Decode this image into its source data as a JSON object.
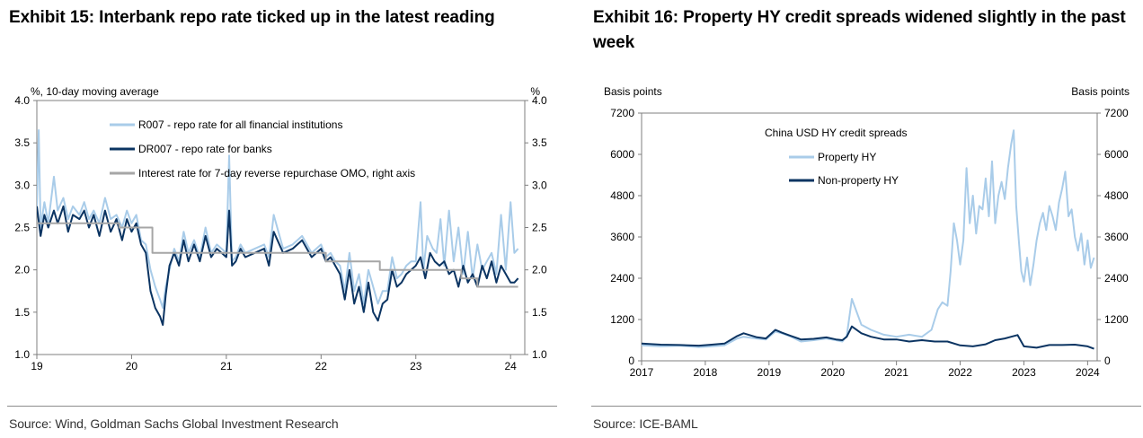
{
  "exhibit15": {
    "title": "Exhibit 15: Interbank repo rate ticked up in the latest reading",
    "source": "Source: Wind, Goldman Sachs Global Investment Research"
  },
  "exhibit16": {
    "title": "Exhibit 16: Property HY credit spreads widened slightly in the past week",
    "source": "Source: ICE-BAML"
  },
  "chart_data": [
    {
      "type": "line",
      "title": "Exhibit 15: Interbank repo rate ticked up in the latest reading",
      "ylabel": "%, 10-day moving average",
      "ylabel_right": "%",
      "ylim": [
        1.0,
        4.0
      ],
      "xlim": [
        2019.0,
        2024.15
      ],
      "yticks": [
        "4.0",
        "3.5",
        "3.0",
        "2.5",
        "2.0",
        "1.5",
        "1.0"
      ],
      "ytick_values": [
        4.0,
        3.5,
        3.0,
        2.5,
        2.0,
        1.5,
        1.0
      ],
      "xticks": [
        "19",
        "20",
        "21",
        "22",
        "23",
        "24"
      ],
      "xtick_values": [
        2019,
        2020,
        2021,
        2022,
        2023,
        2024
      ],
      "legend": [
        "R007 - repo rate for all financial institutions",
        "DR007 - repo rate for banks",
        "Interest rate for 7-day reverse repurchase OMO, right axis"
      ],
      "series": [
        {
          "name": "R007 - repo rate for all financial institutions",
          "color": "#a9cce9",
          "width": 2,
          "x": [
            2019.0,
            2019.02,
            2019.04,
            2019.08,
            2019.12,
            2019.18,
            2019.22,
            2019.28,
            2019.33,
            2019.38,
            2019.45,
            2019.5,
            2019.55,
            2019.6,
            2019.66,
            2019.72,
            2019.78,
            2019.84,
            2019.9,
            2019.95,
            2020.0,
            2020.05,
            2020.1,
            2020.15,
            2020.2,
            2020.25,
            2020.3,
            2020.33,
            2020.36,
            2020.4,
            2020.45,
            2020.5,
            2020.55,
            2020.6,
            2020.66,
            2020.72,
            2020.78,
            2020.84,
            2020.9,
            2020.95,
            2021.0,
            2021.03,
            2021.06,
            2021.1,
            2021.15,
            2021.2,
            2021.3,
            2021.4,
            2021.45,
            2021.5,
            2021.6,
            2021.7,
            2021.8,
            2021.9,
            2022.0,
            2022.05,
            2022.1,
            2022.15,
            2022.2,
            2022.25,
            2022.3,
            2022.35,
            2022.4,
            2022.45,
            2022.5,
            2022.6,
            2022.65,
            2022.7,
            2022.75,
            2022.8,
            2022.85,
            2022.9,
            2022.95,
            2023.0,
            2023.05,
            2023.08,
            2023.12,
            2023.18,
            2023.22,
            2023.26,
            2023.3,
            2023.35,
            2023.4,
            2023.45,
            2023.5,
            2023.55,
            2023.6,
            2023.65,
            2023.7,
            2023.75,
            2023.8,
            2023.85,
            2023.9,
            2023.95,
            2024.0,
            2024.04,
            2024.08
          ],
          "values": [
            2.75,
            3.65,
            2.5,
            2.8,
            2.55,
            3.1,
            2.7,
            2.85,
            2.6,
            2.75,
            2.65,
            2.8,
            2.6,
            2.7,
            2.55,
            2.85,
            2.6,
            2.65,
            2.5,
            2.7,
            2.55,
            2.65,
            2.35,
            2.3,
            2.0,
            1.8,
            1.65,
            1.55,
            1.8,
            2.0,
            2.25,
            2.1,
            2.45,
            2.2,
            2.35,
            2.15,
            2.5,
            2.2,
            2.3,
            2.25,
            2.2,
            3.35,
            2.1,
            2.15,
            2.3,
            2.2,
            2.25,
            2.3,
            2.15,
            2.65,
            2.25,
            2.3,
            2.4,
            2.2,
            2.3,
            2.15,
            2.2,
            2.1,
            2.05,
            1.75,
            2.2,
            1.75,
            1.95,
            1.6,
            2.0,
            1.6,
            1.75,
            1.75,
            2.15,
            1.9,
            1.95,
            2.05,
            2.1,
            2.1,
            2.8,
            2.0,
            2.4,
            2.25,
            2.2,
            2.6,
            2.05,
            2.7,
            2.1,
            2.5,
            1.95,
            2.45,
            1.9,
            2.3,
            2.0,
            2.1,
            2.2,
            1.95,
            2.65,
            2.0,
            2.8,
            2.2,
            2.25
          ]
        },
        {
          "name": "DR007 - repo rate for banks",
          "color": "#0b3462",
          "width": 2,
          "x": [
            2019.0,
            2019.04,
            2019.08,
            2019.12,
            2019.18,
            2019.22,
            2019.28,
            2019.33,
            2019.38,
            2019.45,
            2019.5,
            2019.55,
            2019.6,
            2019.66,
            2019.72,
            2019.78,
            2019.84,
            2019.9,
            2019.95,
            2020.0,
            2020.05,
            2020.1,
            2020.15,
            2020.2,
            2020.25,
            2020.3,
            2020.33,
            2020.36,
            2020.4,
            2020.45,
            2020.5,
            2020.55,
            2020.6,
            2020.66,
            2020.72,
            2020.78,
            2020.84,
            2020.9,
            2020.95,
            2021.0,
            2021.03,
            2021.06,
            2021.1,
            2021.15,
            2021.2,
            2021.3,
            2021.4,
            2021.45,
            2021.5,
            2021.6,
            2021.7,
            2021.8,
            2021.9,
            2022.0,
            2022.05,
            2022.1,
            2022.15,
            2022.2,
            2022.25,
            2022.3,
            2022.35,
            2022.4,
            2022.45,
            2022.5,
            2022.55,
            2022.6,
            2022.65,
            2022.7,
            2022.75,
            2022.8,
            2022.85,
            2022.9,
            2022.95,
            2023.0,
            2023.05,
            2023.1,
            2023.15,
            2023.2,
            2023.25,
            2023.3,
            2023.35,
            2023.4,
            2023.45,
            2023.5,
            2023.55,
            2023.6,
            2023.65,
            2023.7,
            2023.75,
            2023.8,
            2023.85,
            2023.9,
            2023.95,
            2024.0,
            2024.04,
            2024.08
          ],
          "values": [
            2.75,
            2.4,
            2.65,
            2.5,
            2.7,
            2.55,
            2.75,
            2.45,
            2.65,
            2.6,
            2.7,
            2.5,
            2.65,
            2.4,
            2.7,
            2.45,
            2.6,
            2.35,
            2.6,
            2.45,
            2.55,
            2.3,
            2.2,
            1.75,
            1.55,
            1.45,
            1.35,
            1.7,
            2.05,
            2.2,
            2.05,
            2.35,
            2.1,
            2.3,
            2.1,
            2.4,
            2.15,
            2.25,
            2.2,
            2.15,
            2.7,
            2.05,
            2.1,
            2.25,
            2.15,
            2.2,
            2.25,
            2.05,
            2.45,
            2.2,
            2.25,
            2.35,
            2.15,
            2.25,
            2.1,
            2.15,
            2.05,
            1.95,
            1.65,
            2.0,
            1.6,
            1.8,
            1.5,
            1.85,
            1.5,
            1.4,
            1.6,
            1.65,
            2.0,
            1.8,
            1.85,
            1.95,
            2.0,
            2.05,
            2.15,
            1.9,
            2.2,
            2.1,
            2.05,
            2.1,
            1.95,
            2.0,
            1.8,
            2.05,
            1.85,
            1.95,
            1.8,
            2.05,
            1.9,
            2.1,
            1.85,
            2.05,
            1.95,
            1.85,
            1.85,
            1.9
          ]
        },
        {
          "name": "Interest rate for 7-day reverse repurchase OMO, right axis",
          "color": "#a6a6a6",
          "width": 2,
          "step": true,
          "x": [
            2019.0,
            2019.87,
            2019.87,
            2020.22,
            2020.22,
            2022.05,
            2022.05,
            2022.62,
            2022.62,
            2023.48,
            2023.48,
            2023.65,
            2023.65,
            2024.08
          ],
          "values": [
            2.55,
            2.55,
            2.5,
            2.5,
            2.2,
            2.2,
            2.1,
            2.1,
            2.0,
            2.0,
            1.9,
            1.9,
            1.8,
            1.8
          ]
        }
      ]
    },
    {
      "type": "line",
      "title": "Exhibit 16: Property HY credit spreads widened slightly in the past week",
      "subtitle": "China USD HY credit spreads",
      "ylabel": "Basis points",
      "ylabel_right": "Basis points",
      "ylim": [
        0,
        7200
      ],
      "xlim": [
        2017.0,
        2024.15
      ],
      "yticks": [
        "7200",
        "6000",
        "4800",
        "3600",
        "2400",
        "1200",
        "0"
      ],
      "ytick_values": [
        7200,
        6000,
        4800,
        3600,
        2400,
        1200,
        0
      ],
      "xticks": [
        "2017",
        "2018",
        "2019",
        "2020",
        "2021",
        "2022",
        "2023",
        "2024"
      ],
      "xtick_values": [
        2017,
        2018,
        2019,
        2020,
        2021,
        2022,
        2023,
        2024
      ],
      "legend": [
        "Property HY",
        "Non-property HY"
      ],
      "series": [
        {
          "name": "Property HY",
          "color": "#a9cce9",
          "width": 2,
          "x": [
            2017.0,
            2017.3,
            2017.6,
            2017.9,
            2018.1,
            2018.3,
            2018.5,
            2018.6,
            2018.8,
            2018.95,
            2019.1,
            2019.2,
            2019.35,
            2019.5,
            2019.7,
            2019.9,
            2020.05,
            2020.15,
            2020.22,
            2020.3,
            2020.45,
            2020.6,
            2020.8,
            2021.0,
            2021.2,
            2021.4,
            2021.55,
            2021.65,
            2021.72,
            2021.8,
            2021.85,
            2021.9,
            2021.95,
            2022.0,
            2022.05,
            2022.1,
            2022.15,
            2022.2,
            2022.25,
            2022.3,
            2022.35,
            2022.4,
            2022.45,
            2022.5,
            2022.55,
            2022.6,
            2022.65,
            2022.7,
            2022.75,
            2022.8,
            2022.84,
            2022.88,
            2022.92,
            2022.96,
            2023.0,
            2023.05,
            2023.1,
            2023.15,
            2023.2,
            2023.25,
            2023.3,
            2023.35,
            2023.4,
            2023.45,
            2023.5,
            2023.55,
            2023.6,
            2023.65,
            2023.7,
            2023.75,
            2023.8,
            2023.85,
            2023.9,
            2023.95,
            2024.0,
            2024.05,
            2024.1
          ],
          "values": [
            450,
            420,
            440,
            400,
            420,
            450,
            650,
            700,
            650,
            620,
            850,
            800,
            700,
            560,
            600,
            650,
            600,
            560,
            720,
            1800,
            1050,
            900,
            760,
            700,
            760,
            700,
            900,
            1500,
            1700,
            1600,
            2600,
            4000,
            3500,
            2800,
            3500,
            5600,
            4000,
            4800,
            3700,
            4500,
            4400,
            5300,
            4200,
            5800,
            4000,
            4800,
            5200,
            4700,
            5600,
            6300,
            6700,
            4500,
            3500,
            2600,
            2300,
            3000,
            2200,
            2800,
            3500,
            4000,
            4300,
            3800,
            4500,
            4200,
            3800,
            4600,
            5000,
            5500,
            4200,
            4400,
            3600,
            3200,
            3700,
            2800,
            3500,
            2700,
            3000
          ]
        },
        {
          "name": "Non-property HY",
          "color": "#0b3462",
          "width": 2,
          "x": [
            2017.0,
            2017.3,
            2017.6,
            2017.9,
            2018.1,
            2018.3,
            2018.5,
            2018.6,
            2018.8,
            2018.95,
            2019.1,
            2019.2,
            2019.35,
            2019.5,
            2019.7,
            2019.9,
            2020.05,
            2020.15,
            2020.22,
            2020.3,
            2020.45,
            2020.6,
            2020.8,
            2021.0,
            2021.2,
            2021.4,
            2021.6,
            2021.8,
            2022.0,
            2022.2,
            2022.4,
            2022.55,
            2022.7,
            2022.8,
            2022.9,
            2023.0,
            2023.2,
            2023.4,
            2023.6,
            2023.8,
            2024.0,
            2024.1
          ],
          "values": [
            500,
            470,
            460,
            440,
            470,
            500,
            720,
            800,
            690,
            650,
            900,
            820,
            720,
            620,
            640,
            680,
            620,
            600,
            700,
            1000,
            800,
            700,
            620,
            620,
            560,
            600,
            560,
            560,
            450,
            420,
            480,
            600,
            650,
            700,
            750,
            420,
            380,
            460,
            460,
            470,
            420,
            350
          ]
        }
      ]
    }
  ]
}
